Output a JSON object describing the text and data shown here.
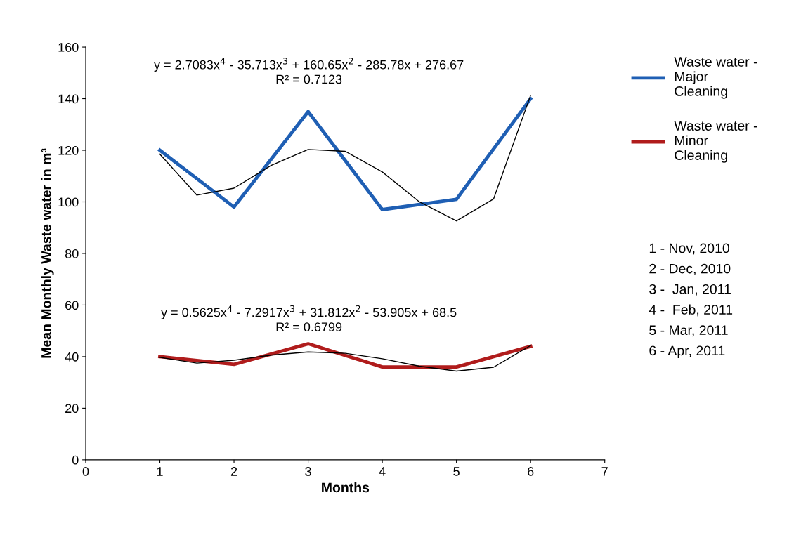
{
  "chart_data": {
    "type": "line",
    "xlabel": "Months",
    "ylabel": "Mean Monthly Waste water in m³",
    "x": [
      1,
      2,
      3,
      4,
      5,
      6
    ],
    "series": [
      {
        "name": "Waste water - Major Cleaning",
        "color": "#1f5fb4",
        "values": [
          120,
          98,
          135,
          97,
          101,
          140
        ]
      },
      {
        "name": "Waste water - Minor Cleaning",
        "color": "#b01c1c",
        "values": [
          40,
          37,
          45,
          36,
          36,
          44
        ]
      },
      {
        "type": "line",
        "color": "#000000",
        "x": [
          1,
          1.5,
          2,
          2.5,
          3,
          3.5,
          4,
          4.5,
          5,
          5.5,
          6
        ],
        "values": [
          118.5,
          102.6,
          105.3,
          114.1,
          120.3,
          119.6,
          111.6,
          100.0,
          92.6,
          101.1,
          141.3
        ]
      },
      {
        "type": "line",
        "color": "#000000",
        "x": [
          1,
          1.5,
          2,
          2.5,
          3,
          3.5,
          4,
          4.5,
          5,
          5.5,
          6
        ],
        "values": [
          39.7,
          37.5,
          38.6,
          40.6,
          41.8,
          41.3,
          39.2,
          36.3,
          34.4,
          35.9,
          44.3
        ]
      }
    ],
    "xlim": [
      0,
      7
    ],
    "xticks": [
      0,
      1,
      2,
      3,
      4,
      5,
      6,
      7
    ],
    "ylim": [
      0,
      160
    ],
    "yticks": [
      0,
      20,
      40,
      60,
      80,
      100,
      120,
      140,
      160
    ],
    "grid": false,
    "legend": "top right",
    "marker": "none",
    "line_style": "solid",
    "annotations": [
      "y = 2.7083x$^{4}$ - 35.713x$^{3}$ + 160.65x$^{2}$ - 285.78x + 276.67",
      "R² = 0.7123",
      "y = 0.5625x$^{4}$ - 7.2917x$^{3}$ + 31.812x$^{2}$ - 53.905x + 68.5",
      "R² = 0.6799",
      "1 - Nov, 2010",
      "2 - Dec, 2010",
      "3 -  Jan, 2011",
      "4 -  Feb, 2011",
      "5 - Mar, 2011",
      "6 - Apr, 2011"
    ]
  }
}
